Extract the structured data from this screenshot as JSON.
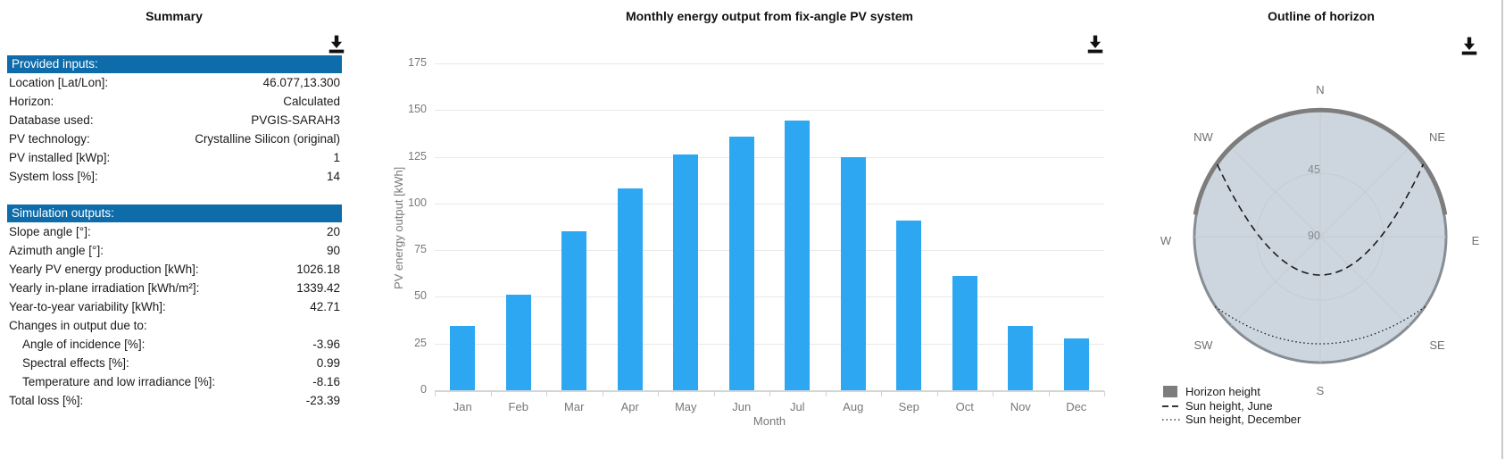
{
  "colors": {
    "table_header_bg": "#0e6cab",
    "bar": "#2da7f2",
    "horizon_fill": "#cdd6de",
    "horizon_outline": "#878d95",
    "horizon_thick_line": "#7d7d7d",
    "grid": "#e9e9e9",
    "tick_text": "#75787b"
  },
  "panels": {
    "summary": {
      "title": "Summary",
      "sections": [
        {
          "header": "Provided inputs:",
          "rows": [
            {
              "label": "Location [Lat/Lon]:",
              "value": "46.077,13.300"
            },
            {
              "label": "Horizon:",
              "value": "Calculated"
            },
            {
              "label": "Database used:",
              "value": "PVGIS-SARAH3"
            },
            {
              "label": "PV technology:",
              "value": "Crystalline Silicon (original)"
            },
            {
              "label": "PV installed [kWp]:",
              "value": "1"
            },
            {
              "label": "System loss [%]:",
              "value": "14"
            }
          ]
        },
        {
          "header": "Simulation outputs:",
          "rows": [
            {
              "label": "Slope angle [°]:",
              "value": "20"
            },
            {
              "label": "Azimuth angle [°]:",
              "value": "90"
            },
            {
              "label": "Yearly PV energy production [kWh]:",
              "value": "1026.18"
            },
            {
              "label": "Yearly in-plane irradiation [kWh/m²]:",
              "value": "1339.42"
            },
            {
              "label": "Year-to-year variability [kWh]:",
              "value": "42.71"
            },
            {
              "label": "Changes in output due to:",
              "value": ""
            },
            {
              "label": "Angle of incidence [%]:",
              "value": "-3.96",
              "indent": true
            },
            {
              "label": "Spectral effects [%]:",
              "value": "0.99",
              "indent": true
            },
            {
              "label": "Temperature and low irradiance [%]:",
              "value": "-8.16",
              "indent": true
            },
            {
              "label": "Total loss [%]:",
              "value": "-23.39"
            }
          ]
        }
      ]
    },
    "chart": {
      "title": "Monthly energy output from fix-angle PV system",
      "xlabel": "Month",
      "ylabel": "PV energy output [kWh]"
    },
    "horizon": {
      "title": "Outline of horizon",
      "compass": {
        "n": "N",
        "ne": "NE",
        "e": "E",
        "se": "SE",
        "s": "S",
        "sw": "SW",
        "w": "W",
        "nw": "NW"
      },
      "radial_ticks": {
        "r45": "45",
        "r90": "90"
      },
      "legend": [
        {
          "label": "Horizon height",
          "marker": "square"
        },
        {
          "label": "Sun height, June",
          "marker": "dashed"
        },
        {
          "label": "Sun height, December",
          "marker": "dotted"
        }
      ]
    }
  },
  "chart_data": [
    {
      "type": "bar",
      "title": "Monthly energy output from fix-angle PV system",
      "categories": [
        "Jan",
        "Feb",
        "Mar",
        "Apr",
        "May",
        "Jun",
        "Jul",
        "Aug",
        "Sep",
        "Oct",
        "Nov",
        "Dec"
      ],
      "values": [
        34.5,
        51,
        85,
        108,
        126,
        136,
        144.5,
        125,
        91,
        61,
        34.5,
        27.5
      ],
      "xlabel": "Month",
      "ylabel": "PV energy output [kWh]",
      "ylim": [
        0,
        175
      ],
      "ytick_step": 25,
      "bar_color": "#2da7f2",
      "grid": true,
      "legend": "none"
    },
    {
      "type": "polar",
      "title": "Outline of horizon",
      "compass_labels": [
        "N",
        "NE",
        "E",
        "SE",
        "S",
        "SW",
        "W",
        "NW"
      ],
      "radial_tick_labels": [
        "45",
        "90"
      ],
      "radial_axis": "sun/horizon height: 90 at center (zenith), 0 at outer edge",
      "series": [
        {
          "name": "Horizon height",
          "style": "thick gray outline ring",
          "approx_height_deg": 0
        },
        {
          "name": "Sun height, June",
          "style": "dashed arc NW→NE",
          "approx_peak_height_deg": 63
        },
        {
          "name": "Sun height, December",
          "style": "dotted arc SW→SE",
          "approx_peak_height_deg": 14
        }
      ],
      "legend_position": "bottom-left"
    }
  ]
}
